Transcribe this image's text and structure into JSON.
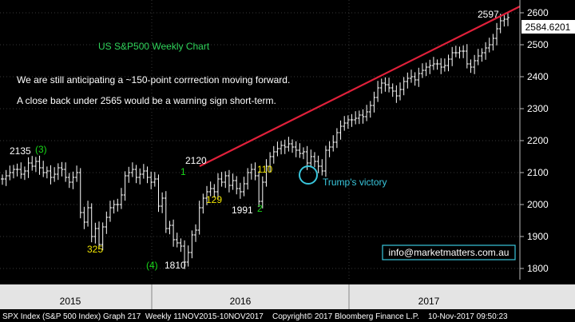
{
  "chart_data": {
    "type": "bar",
    "subtype": "weekly-ohlc",
    "title": "US S&P500 Weekly Chart",
    "notes": [
      "We are still anticipating a ~150-point corrrection moving forward.",
      "A close back under 2565 would be a warning sign short-term."
    ],
    "y_ticks": [
      1800,
      1900,
      2000,
      2100,
      2200,
      2300,
      2400,
      2500,
      2600
    ],
    "ylim": [
      1765,
      2640
    ],
    "x_ticks": [
      "2015",
      "2016",
      "2017"
    ],
    "last_price": "2584.6201",
    "closes": [
      2080,
      2090,
      2100,
      2110,
      2110,
      2095,
      2105,
      2130,
      2120,
      2135,
      2115,
      2100,
      2105,
      2085,
      2095,
      2115,
      2110,
      2085,
      2070,
      2085,
      2100,
      1975,
      1945,
      1990,
      1900,
      1925,
      1875,
      1930,
      1960,
      1990,
      2000,
      2000,
      2030,
      2090,
      2100,
      2110,
      2085,
      2095,
      2105,
      2085,
      2070,
      2080,
      1995,
      2020,
      1925,
      1935,
      1890,
      1880,
      1870,
      1820,
      1850,
      1905,
      1920,
      1990,
      2020,
      2040,
      2050,
      2040,
      2080,
      2070,
      2090,
      2060,
      2075,
      2050,
      2040,
      2065,
      2100,
      2110,
      2090,
      2010,
      2070,
      2120,
      2150,
      2165,
      2175,
      2185,
      2180,
      2190,
      2180,
      2170,
      2160,
      2165,
      2130,
      2150,
      2135,
      2120,
      2105,
      2170,
      2180,
      2195,
      2225,
      2245,
      2255,
      2265,
      2265,
      2270,
      2280,
      2275,
      2290,
      2310,
      2335,
      2365,
      2380,
      2375,
      2365,
      2355,
      2340,
      2360,
      2385,
      2395,
      2400,
      2390,
      2410,
      2420,
      2430,
      2435,
      2440,
      2440,
      2430,
      2435,
      2455,
      2475,
      2475,
      2480,
      2480,
      2440,
      2430,
      2450,
      2465,
      2475,
      2490,
      2500,
      2520,
      2550,
      2575,
      2580,
      2585
    ],
    "annotations": [
      {
        "text": "2135",
        "price": 2135
      },
      {
        "text": "(3)",
        "price": 2135
      },
      {
        "text": "325",
        "price": 1860
      },
      {
        "text": "(4)",
        "price": 1810
      },
      {
        "text": "1810",
        "price": 1810
      },
      {
        "text": "2120",
        "price": 2120
      },
      {
        "text": "1",
        "price": 2100
      },
      {
        "text": "129",
        "price": 2065
      },
      {
        "text": "1991",
        "price": 1991
      },
      {
        "text": "2",
        "price": 1991
      },
      {
        "text": "110",
        "price": 2110
      },
      {
        "text": "Trump's victory",
        "price": 2085
      },
      {
        "text": "2597",
        "price": 2597
      }
    ],
    "trendline": {
      "from": {
        "label": "2120",
        "price": 2120
      },
      "to": {
        "price": 2600
      }
    },
    "grid": true,
    "contact": "info@marketmatters.com.au"
  },
  "footer": {
    "text": "SPX Index (S&P 500 Index) Graph 217  Weekly 11NOV2015-10NOV2017    Copyright© 2017 Bloomberg Finance L.P.    10-Nov-2017 09:50:23"
  },
  "colors": {
    "background": "#000000",
    "bars": "#ffffff",
    "trendline": "#e0203a",
    "annotation_white": "#ffffff",
    "annotation_yellow": "#f2e600",
    "annotation_green": "#18d818",
    "callout": "#39c6dc",
    "grid": "#4a4a4a"
  }
}
